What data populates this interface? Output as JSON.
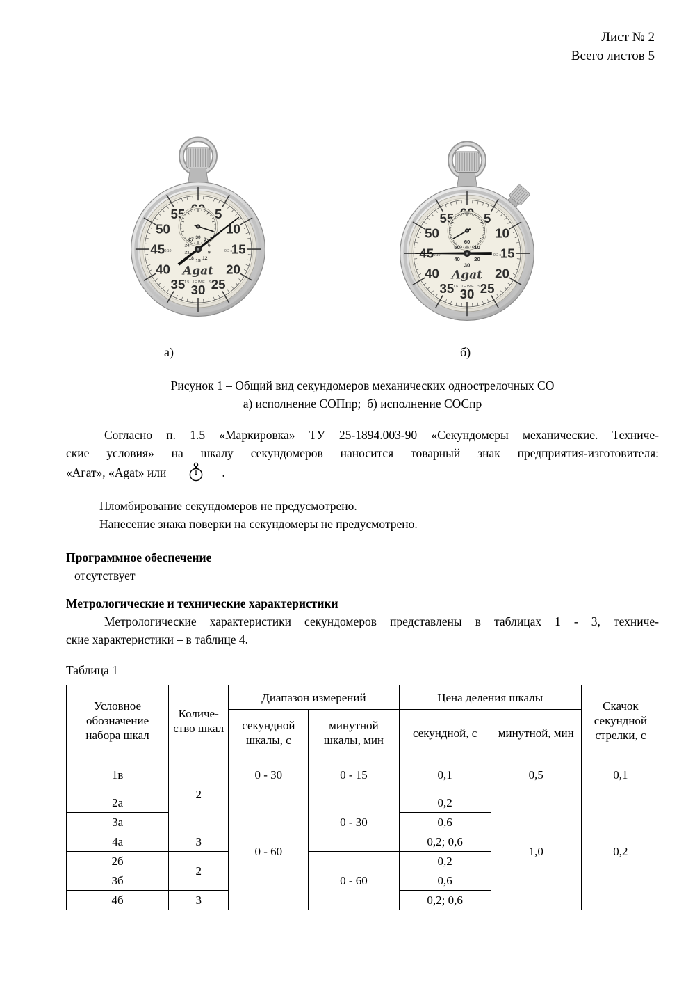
{
  "header": {
    "sheet": "Лист № 2",
    "total": "Всего листов 5"
  },
  "figure": {
    "label_a": "а)",
    "label_b": "б)",
    "caption1": "Рисунок 1 – Общий вид секундомеров механических однострелочных СО",
    "caption2": "а) исполнение СОПпр;  б) исполнение СОСпр"
  },
  "stopwatches": {
    "a": {
      "main_numbers": [
        "60",
        "5",
        "10",
        "15",
        "20",
        "25",
        "30",
        "35",
        "40",
        "45",
        "50",
        "55"
      ],
      "sub_numbers": [
        "30",
        "3",
        "6",
        "9",
        "12",
        "15",
        "18",
        "21",
        "24",
        "27"
      ],
      "sub_units": 30,
      "brand": "Agat",
      "jewels": "15 JEWELS",
      "left_mark": "0,10",
      "right_mark": "0,2 s",
      "main_hand_deg": 52,
      "sub_hand_deg": 108,
      "side_crown": false
    },
    "b": {
      "main_numbers": [
        "60",
        "5",
        "10",
        "15",
        "20",
        "25",
        "30",
        "35",
        "40",
        "45",
        "50",
        "55"
      ],
      "sub_numbers": [
        "60",
        "10",
        "20",
        "30",
        "40",
        "50"
      ],
      "sub_units": 60,
      "brand": "Agat",
      "jewels": "16 JEWELS",
      "left_mark": "0,10",
      "right_mark": "0,2 s",
      "main_hand_deg": 270,
      "sub_hand_deg": 240,
      "side_crown": true
    }
  },
  "para_marking": {
    "line1": "Согласно п. 1.5 «Маркировка» ТУ 25-1894.003-90 «Секундомеры механические. Техниче-",
    "line2": "ские условия» на шкалу секундомеров наносится товарный знак предприятия-изготовителя:",
    "line3_pre": "«Агат», «Agat» или",
    "line3_post": "."
  },
  "para_seal": {
    "line1": "Пломбирование секундомеров не предусмотрено.",
    "line2": "Нанесение знака поверки на секундомеры не предусмотрено."
  },
  "software": {
    "heading": "Программное обеспечение",
    "value": "отсутствует"
  },
  "metrology": {
    "heading": "Метрологические и технические характеристики",
    "line1": "Метрологические характеристики секундомеров представлены в таблицах 1 - 3, техниче-",
    "line2": "ские характеристики – в таблице 4."
  },
  "table": {
    "title": "Таблица 1",
    "head": {
      "c1": "Условное обозначение набора шкал",
      "c2": "Количе-ство шкал",
      "g1": "Диапазон измерений",
      "c3": "секундной шкалы, с",
      "c4": "минутной шкалы, мин",
      "g2": "Цена деления шкалы",
      "c5": "секундной, с",
      "c6": "минутной, мин",
      "c7": "Скачок секундной стрелки, с"
    },
    "rows": [
      {
        "cells": [
          {
            "t": "1в"
          },
          {
            "t": "2",
            "rs": 3
          },
          {
            "t": "0 - 30"
          },
          {
            "t": "0 - 15"
          },
          {
            "t": "0,1"
          },
          {
            "t": "0,5"
          },
          {
            "t": "0,1"
          }
        ]
      },
      {
        "cells": [
          {
            "t": "2а"
          },
          {
            "t": "0 - 60",
            "rs": 6
          },
          {
            "t": "0 - 30",
            "rs": 3
          },
          {
            "t": "0,2"
          },
          {
            "t": "1,0",
            "rs": 6
          },
          {
            "t": "0,2",
            "rs": 6
          }
        ]
      },
      {
        "cells": [
          {
            "t": "3а"
          },
          {
            "t": "0,6"
          }
        ]
      },
      {
        "cells": [
          {
            "t": "4а"
          },
          {
            "t": "3"
          },
          {
            "t": "0,2; 0,6"
          }
        ]
      },
      {
        "cells": [
          {
            "t": "2б"
          },
          {
            "t": "2",
            "rs": 2
          },
          {
            "t": "0 - 60",
            "rs": 3
          },
          {
            "t": "0,2"
          }
        ]
      },
      {
        "cells": [
          {
            "t": "3б"
          },
          {
            "t": "0,6"
          }
        ]
      },
      {
        "cells": [
          {
            "t": "4б"
          },
          {
            "t": "3"
          },
          {
            "t": "0,2; 0,6"
          }
        ]
      }
    ]
  },
  "colors": {
    "page_background": "#ffffff",
    "text": "#000000",
    "metal_light": "#fafafa",
    "metal_dark": "#a3a3a3",
    "dial_face": "#f1eee3"
  }
}
